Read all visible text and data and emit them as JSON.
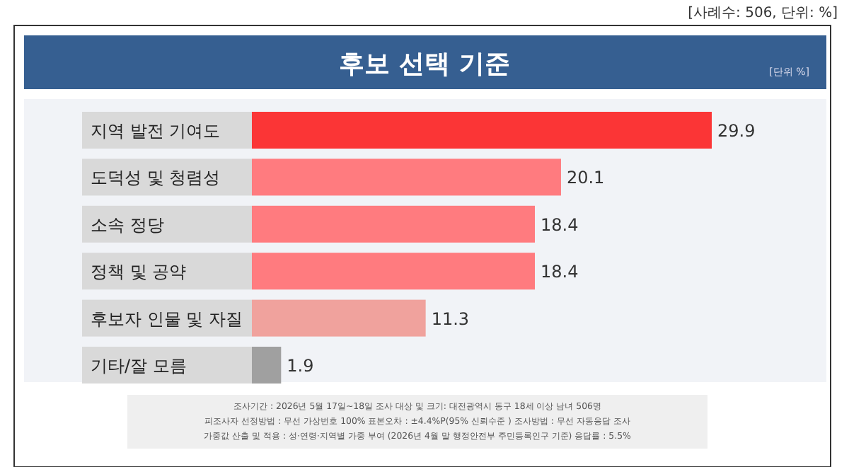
{
  "chart_data": {
    "type": "bar",
    "orientation": "horizontal",
    "title": "후보 선택 기준",
    "subtitle": "[단위 %]",
    "categories": [
      "지역 발전 기여도",
      "도덕성 및 청렴성",
      "소속 정당",
      "정책 및 공약",
      "후보자 인물 및 자질",
      "기타/잘 모름"
    ],
    "values": [
      29.9,
      20.1,
      18.4,
      18.4,
      11.3,
      1.9
    ],
    "colors": [
      "#fb3536",
      "#ff7b7f",
      "#ff7b7f",
      "#ff7b7f",
      "#f0a29d",
      "#a0a0a0"
    ],
    "data_labels": true,
    "annotations": [
      "[사례수: 506, 단위: %]",
      "조사기간 : 2026년 5월 17일~18일   조사 대상 및 크기: 대전광역시 동구 18세 이상 남녀 506명",
      "피조사자 선정방법 : 무선 가상번호 100%   표본오차 : ±4.4%P(95% 신뢰수준 )   조사방법 : 무선 자동응답 조사",
      "가중값 산출 및 적용 : 성·연령·지역별 가중 부여 (2026년 4월 말 행정안전부 주민등록인구 기준)   응답률 : 5.5%"
    ]
  }
}
